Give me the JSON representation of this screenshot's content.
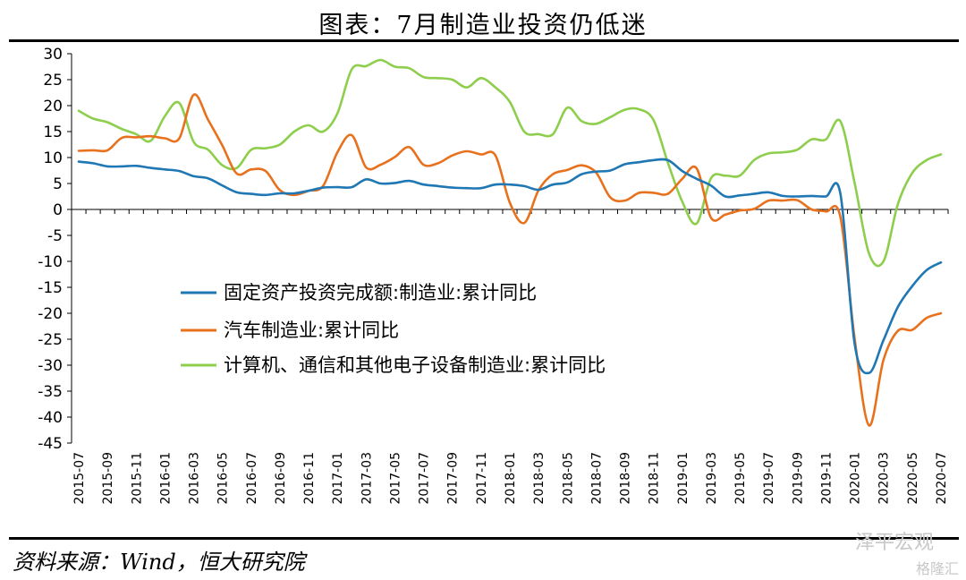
{
  "title": "图表：7月制造业投资仍低迷",
  "source": "资料来源：Wind，恒大研究院",
  "watermark": "泽平宏观",
  "watermark2": "格隆汇",
  "chart_data": {
    "type": "line",
    "ylim": [
      -45,
      30
    ],
    "yticks": [
      30,
      25,
      20,
      15,
      10,
      5,
      0,
      -5,
      -10,
      -15,
      -20,
      -25,
      -30,
      -35,
      -40,
      -45
    ],
    "x": [
      "2015-07",
      "2015-08",
      "2015-09",
      "2015-10",
      "2015-11",
      "2015-12",
      "2016-01",
      "2016-02",
      "2016-03",
      "2016-04",
      "2016-05",
      "2016-06",
      "2016-07",
      "2016-08",
      "2016-09",
      "2016-10",
      "2016-11",
      "2016-12",
      "2017-01",
      "2017-02",
      "2017-03",
      "2017-04",
      "2017-05",
      "2017-06",
      "2017-07",
      "2017-08",
      "2017-09",
      "2017-10",
      "2017-11",
      "2017-12",
      "2018-01",
      "2018-02",
      "2018-03",
      "2018-04",
      "2018-05",
      "2018-06",
      "2018-07",
      "2018-08",
      "2018-09",
      "2018-10",
      "2018-11",
      "2018-12",
      "2019-01",
      "2019-02",
      "2019-03",
      "2019-04",
      "2019-05",
      "2019-06",
      "2019-07",
      "2019-08",
      "2019-09",
      "2019-10",
      "2019-11",
      "2019-12",
      "2020-01",
      "2020-02",
      "2020-03",
      "2020-04",
      "2020-05",
      "2020-06",
      "2020-07"
    ],
    "xtick_labels": [
      "2015-07",
      "2015-09",
      "2015-11",
      "2016-01",
      "2016-03",
      "2016-05",
      "2016-07",
      "2016-09",
      "2016-11",
      "2017-01",
      "2017-03",
      "2017-05",
      "2017-07",
      "2017-09",
      "2017-11",
      "2018-01",
      "2018-03",
      "2018-05",
      "2018-07",
      "2018-09",
      "2018-11",
      "2019-01",
      "2019-03",
      "2019-05",
      "2019-07",
      "2019-09",
      "2019-11",
      "2020-01",
      "2020-03",
      "2020-05",
      "2020-07"
    ],
    "series": [
      {
        "name": "固定资产投资完成额:制造业:累计同比",
        "color": "#1f77b4",
        "values": [
          9.2,
          8.9,
          8.3,
          8.3,
          8.4,
          8.0,
          7.7,
          7.4,
          6.4,
          6.0,
          4.6,
          3.3,
          3.0,
          2.8,
          3.1,
          3.1,
          3.6,
          4.2,
          4.3,
          4.3,
          5.8,
          5.0,
          5.1,
          5.5,
          4.8,
          4.5,
          4.2,
          4.1,
          4.1,
          4.8,
          4.8,
          4.5,
          3.8,
          4.8,
          5.2,
          6.8,
          7.3,
          7.5,
          8.7,
          9.1,
          9.5,
          9.5,
          7.4,
          5.9,
          4.6,
          2.5,
          2.7,
          3.0,
          3.3,
          2.6,
          2.5,
          2.6,
          2.5,
          3.1,
          -26.0,
          -31.5,
          -25.2,
          -18.8,
          -14.8,
          -11.7,
          -10.2
        ]
      },
      {
        "name": "汽车制造业:累计同比",
        "color": "#e8711d",
        "values": [
          11.3,
          11.4,
          11.4,
          13.8,
          13.9,
          14.1,
          13.7,
          13.7,
          22.1,
          17.3,
          12.3,
          6.9,
          7.7,
          7.4,
          3.7,
          2.8,
          3.6,
          4.5,
          11.0,
          14.3,
          8.1,
          8.6,
          10.1,
          12.0,
          8.6,
          8.9,
          10.4,
          11.2,
          10.6,
          10.4,
          1.3,
          -2.6,
          3.7,
          6.8,
          7.6,
          8.5,
          7.1,
          2.3,
          1.7,
          3.2,
          3.2,
          3.0,
          5.9,
          7.9,
          -1.6,
          -1.0,
          -0.2,
          0.1,
          1.7,
          1.7,
          1.8,
          0.0,
          -0.4,
          -1.4,
          -25.0,
          -41.6,
          -29.0,
          -23.4,
          -23.2,
          -20.9,
          -20.0
        ]
      },
      {
        "name": "计算机、通信和其他电子设备制造业:累计同比",
        "color": "#8dce4d",
        "values": [
          19.0,
          17.5,
          16.8,
          15.5,
          14.5,
          13.2,
          18.0,
          20.5,
          13.0,
          11.5,
          8.5,
          8.0,
          11.5,
          11.8,
          12.5,
          15.0,
          16.2,
          15.0,
          18.5,
          27.0,
          27.6,
          28.8,
          27.5,
          27.2,
          25.5,
          25.3,
          25.0,
          23.5,
          25.3,
          23.5,
          20.7,
          15.0,
          14.5,
          14.5,
          19.6,
          17.0,
          16.5,
          17.8,
          19.2,
          19.3,
          17.2,
          9.0,
          1.5,
          -2.7,
          6.0,
          6.5,
          6.5,
          9.5,
          10.8,
          11.0,
          11.5,
          13.5,
          13.5,
          17.0,
          5.0,
          -8.5,
          -10.0,
          1.0,
          7.0,
          9.5,
          10.6
        ]
      }
    ]
  }
}
